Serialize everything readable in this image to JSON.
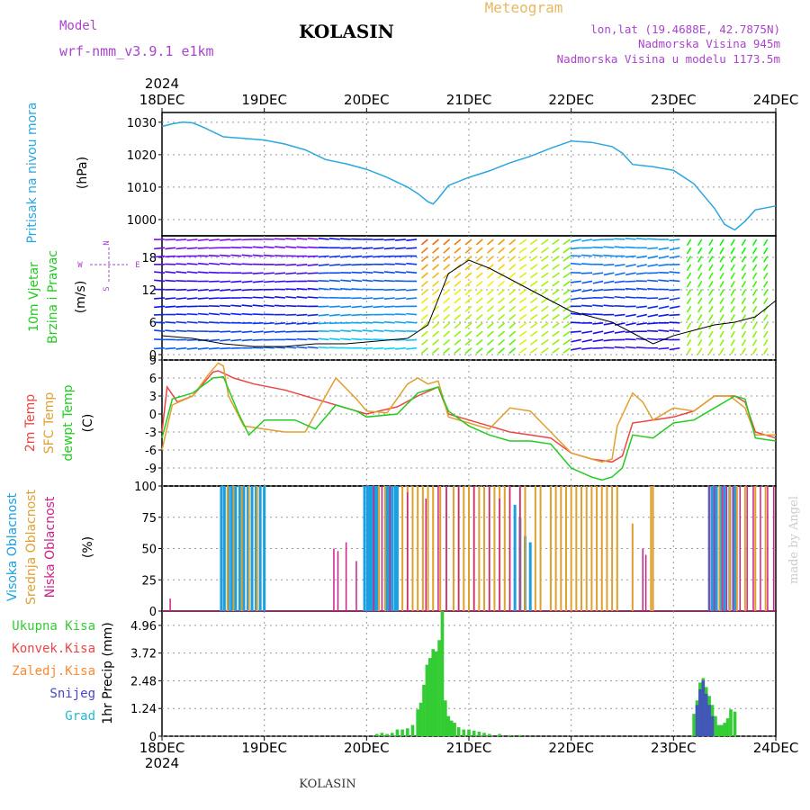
{
  "header": {
    "model_label": "Model",
    "model_name": "wrf-nmm_v3.9.1 e1km",
    "station": "KOLASIN",
    "meteogram": "Meteogram",
    "lonlat": "lon,lat (19.4688E, 42.7875N)",
    "elevation": "Nadmorska Visina 945m",
    "model_elevation": "Nadmorska Visina u modelu 1173.5m",
    "year": "2024",
    "footer_station": "KOLASIN",
    "credit": "made by Angel"
  },
  "colors": {
    "pressure": "#2aa6e0",
    "temp2m": "#ee4444",
    "sfc": "#e0a030",
    "dewpt": "#22cc22",
    "cloud_high": "#1aa0e0",
    "cloud_mid": "#e0a030",
    "cloud_low": "#cc2288",
    "precip_total": "#33cc33",
    "precip_conv": "#ee4444",
    "precip_freeze": "#ff8833",
    "precip_snow": "#4444cc",
    "precip_graupel": "#22bbcc",
    "label_purple": "#aa44cc",
    "label_gold": "#e8b860"
  },
  "chart_data": [
    {
      "type": "line",
      "panel": "pressure",
      "ylabel_main": "Pritisak na nivou mora",
      "ylabel_unit": "(hPa)",
      "x_ticks": [
        "18DEC",
        "19DEC",
        "20DEC",
        "21DEC",
        "22DEC",
        "23DEC",
        "24DEC"
      ],
      "x_range_days": [
        0,
        6
      ],
      "y_ticks": [
        "1030",
        "1020",
        "1010",
        "1000"
      ],
      "ylim": [
        995,
        1033
      ],
      "grid": true,
      "series": [
        {
          "x": [
            0,
            0.1,
            0.2,
            0.3,
            0.4,
            0.6,
            0.8,
            1.0,
            1.2,
            1.4,
            1.6,
            1.8,
            2.0,
            2.2,
            2.4,
            2.5,
            2.6,
            2.65,
            2.7,
            2.8,
            3.0,
            3.2,
            3.4,
            3.6,
            3.8,
            4.0,
            4.2,
            4.4,
            4.5,
            4.6,
            4.8,
            5.0,
            5.2,
            5.4,
            5.5,
            5.6,
            5.7,
            5.8,
            6.0
          ],
          "values": [
            1028.7,
            1029.5,
            1030.0,
            1029.8,
            1028.5,
            1025.5,
            1025.0,
            1024.5,
            1023.3,
            1021.5,
            1018.5,
            1017.2,
            1015.5,
            1013.0,
            1010.0,
            1008.0,
            1005.5,
            1004.8,
            1006.5,
            1010.5,
            1013.0,
            1015.0,
            1017.5,
            1019.5,
            1022.0,
            1024.2,
            1023.8,
            1022.5,
            1020.5,
            1017.0,
            1016.3,
            1015.2,
            1011.0,
            1003.5,
            998.5,
            996.8,
            999.5,
            1003.0,
            1004.2
          ]
        }
      ]
    },
    {
      "type": "line",
      "panel": "wind",
      "ylabel_main": "10m Vjetar",
      "ylabel_sub": "Brzina i Pravac",
      "ylabel_unit": "(m/s)",
      "compass": {
        "n": "N",
        "s": "S",
        "e": "E",
        "w": "W"
      },
      "y_ticks": [
        "18",
        "12",
        "6",
        "0"
      ],
      "ylim": [
        -1,
        22
      ],
      "series": [
        {
          "name": "wind_speed",
          "x": [
            0,
            0.3,
            0.6,
            0.9,
            1.2,
            1.5,
            1.8,
            2.1,
            2.4,
            2.6,
            2.8,
            3.0,
            3.2,
            3.4,
            3.6,
            3.8,
            4.0,
            4.2,
            4.4,
            4.6,
            4.8,
            5.0,
            5.2,
            5.4,
            5.6,
            5.8,
            6.0
          ],
          "values": [
            3.5,
            3.0,
            2.0,
            1.5,
            1.5,
            2.0,
            2.0,
            2.5,
            3.0,
            5.5,
            15.0,
            17.5,
            16.0,
            14.0,
            12.0,
            10.0,
            8.0,
            7.0,
            6.0,
            4.0,
            2.0,
            3.5,
            4.5,
            5.5,
            6.0,
            7.0,
            10.0
          ]
        }
      ]
    },
    {
      "type": "line",
      "panel": "temperature",
      "ylabel_t2m": "2m Temp",
      "ylabel_sfc": "SFC Temp",
      "ylabel_dew": "dewpt Temp",
      "ylabel_unit": "(C)",
      "y_ticks": [
        "9",
        "6",
        "3",
        "0",
        "-3",
        "-6",
        "-9"
      ],
      "ylim": [
        -12,
        9
      ],
      "series": [
        {
          "name": "2m Temp",
          "x": [
            0,
            0.05,
            0.15,
            0.3,
            0.5,
            0.55,
            0.7,
            0.9,
            1.2,
            1.6,
            1.8,
            2.0,
            2.3,
            2.5,
            2.7,
            2.8,
            3.0,
            3.2,
            3.4,
            3.6,
            3.8,
            4.0,
            4.2,
            4.4,
            4.5,
            4.6,
            4.8,
            5.0,
            5.2,
            5.4,
            5.6,
            5.7,
            5.8,
            6.0
          ],
          "values": [
            -3.0,
            4.5,
            2.0,
            3.0,
            7.0,
            7.2,
            6.0,
            5.0,
            4.0,
            2.0,
            1.0,
            0.0,
            1.2,
            3.0,
            4.5,
            0.0,
            -1.0,
            -2.0,
            -3.0,
            -3.5,
            -4.0,
            -6.5,
            -7.5,
            -8.0,
            -7.0,
            -1.5,
            -1.0,
            -0.5,
            0.5,
            3.0,
            3.0,
            2.0,
            -3.0,
            -4.0
          ]
        },
        {
          "name": "SFC Temp",
          "x": [
            0,
            0.1,
            0.3,
            0.45,
            0.55,
            0.6,
            0.65,
            0.8,
            1.0,
            1.2,
            1.4,
            1.7,
            1.9,
            2.0,
            2.2,
            2.4,
            2.5,
            2.6,
            2.7,
            2.8,
            3.0,
            3.2,
            3.4,
            3.6,
            3.8,
            4.0,
            4.2,
            4.3,
            4.4,
            4.45,
            4.6,
            4.7,
            4.8,
            5.0,
            5.2,
            5.4,
            5.55,
            5.7,
            5.8,
            6.0
          ],
          "values": [
            -6.0,
            1.5,
            3.0,
            6.5,
            8.5,
            8.0,
            3.0,
            -2.0,
            -2.5,
            -3.0,
            -3.0,
            6.0,
            2.5,
            0.5,
            0.2,
            5.0,
            6.0,
            5.0,
            5.5,
            -0.5,
            -1.5,
            -2.5,
            1.0,
            0.5,
            -3.0,
            -6.5,
            -7.5,
            -8.0,
            -7.5,
            -2.0,
            3.5,
            2.0,
            -1.0,
            1.0,
            0.5,
            3.0,
            3.0,
            1.0,
            -3.5,
            -3.5
          ]
        },
        {
          "name": "dewpt Temp",
          "x": [
            0,
            0.1,
            0.3,
            0.5,
            0.6,
            0.75,
            0.85,
            1.0,
            1.3,
            1.5,
            1.7,
            1.9,
            2.0,
            2.3,
            2.5,
            2.7,
            2.8,
            3.0,
            3.2,
            3.4,
            3.6,
            3.8,
            4.0,
            4.2,
            4.3,
            4.4,
            4.5,
            4.6,
            4.8,
            5.0,
            5.2,
            5.4,
            5.6,
            5.7,
            5.8,
            6.0
          ],
          "values": [
            -4.0,
            2.5,
            3.5,
            6.0,
            6.2,
            0.0,
            -3.5,
            -1.0,
            -1.0,
            -2.5,
            1.5,
            0.5,
            -0.5,
            0.0,
            3.5,
            4.5,
            0.5,
            -2.0,
            -3.5,
            -4.5,
            -4.5,
            -5.0,
            -9.0,
            -10.5,
            -11.0,
            -10.5,
            -9.0,
            -3.5,
            -4.0,
            -1.5,
            -1.0,
            1.0,
            3.0,
            2.5,
            -4.0,
            -4.5
          ]
        }
      ]
    },
    {
      "type": "bar",
      "panel": "cloud",
      "ylabel_high": "Visoka Oblacnost",
      "ylabel_mid": "Srednja Oblacnost",
      "ylabel_low": "Niska Oblacnost",
      "ylabel_unit": "(%)",
      "y_ticks": [
        "100",
        "75",
        "50",
        "25",
        "0"
      ],
      "ylim": [
        0,
        100
      ],
      "series": [
        {
          "name": "Visoka Oblacnost",
          "x": [
            0.58,
            0.61,
            0.65,
            0.68,
            0.72,
            0.76,
            0.8,
            0.84,
            0.88,
            0.92,
            0.96,
            1.0,
            1.98,
            2.01,
            2.03,
            2.05,
            2.08,
            2.1,
            2.2,
            2.22,
            2.25,
            2.28,
            2.3,
            3.45,
            3.5,
            3.55,
            3.6,
            5.35,
            5.38,
            5.42,
            5.46,
            5.5,
            5.55,
            5.6
          ],
          "values": [
            100,
            100,
            100,
            100,
            100,
            100,
            100,
            100,
            100,
            100,
            100,
            100,
            100,
            100,
            100,
            100,
            100,
            100,
            100,
            100,
            100,
            100,
            100,
            85,
            75,
            60,
            55,
            100,
            100,
            100,
            100,
            100,
            100,
            100
          ]
        },
        {
          "name": "Srednja Oblacnost",
          "x": [
            0.64,
            0.7,
            0.78,
            0.85,
            0.93,
            2.12,
            2.18,
            2.35,
            2.4,
            2.45,
            2.5,
            2.55,
            2.6,
            2.65,
            2.72,
            2.78,
            2.85,
            2.9,
            2.95,
            3.0,
            3.05,
            3.1,
            3.15,
            3.2,
            3.25,
            3.3,
            3.35,
            3.4,
            3.5,
            3.55,
            3.65,
            3.7,
            3.8,
            3.85,
            3.9,
            3.95,
            4.0,
            4.05,
            4.1,
            4.15,
            4.2,
            4.25,
            4.3,
            4.35,
            4.4,
            4.45,
            4.6,
            4.78,
            4.8,
            5.45,
            5.55,
            5.62,
            5.7,
            5.8,
            5.9
          ],
          "values": [
            100,
            100,
            100,
            100,
            100,
            100,
            100,
            100,
            100,
            100,
            100,
            100,
            100,
            100,
            100,
            100,
            100,
            100,
            100,
            100,
            100,
            100,
            100,
            100,
            100,
            100,
            100,
            100,
            100,
            100,
            100,
            100,
            100,
            100,
            100,
            100,
            100,
            100,
            100,
            100,
            100,
            100,
            100,
            100,
            100,
            100,
            70,
            100,
            100,
            100,
            100,
            100,
            100,
            100,
            100
          ]
        },
        {
          "name": "Niska Oblacnost",
          "x": [
            0.08,
            1.68,
            1.72,
            1.8,
            1.9,
            2.07,
            2.15,
            2.23,
            2.4,
            2.58,
            2.7,
            2.78,
            2.9,
            3.05,
            3.2,
            3.3,
            3.4,
            3.5,
            4.7,
            4.73,
            5.35,
            5.4,
            5.48,
            5.52,
            5.58,
            5.65,
            5.72,
            5.78,
            5.85,
            5.92,
            5.98
          ],
          "values": [
            10,
            50,
            48,
            55,
            40,
            100,
            100,
            100,
            95,
            90,
            100,
            100,
            100,
            100,
            100,
            90,
            100,
            100,
            50,
            45,
            100,
            100,
            100,
            100,
            100,
            100,
            100,
            100,
            100,
            100,
            100
          ]
        }
      ]
    },
    {
      "type": "bar",
      "panel": "precip",
      "legend": [
        "Ukupna Kisa",
        "Konvek.Kisa",
        "Zaledj.Kisa",
        "Snijeg",
        "Grad"
      ],
      "ylabel_unit": "1hr Precip (mm)",
      "y_ticks": [
        "4.96",
        "3.72",
        "2.48",
        "1.24",
        "0"
      ],
      "ylim": [
        0,
        5.6
      ],
      "x_ticks": [
        "18DEC",
        "19DEC",
        "20DEC",
        "21DEC",
        "22DEC",
        "23DEC",
        "24DEC"
      ],
      "series": [
        {
          "name": "Ukupna Kisa",
          "x": [
            2.1,
            2.15,
            2.2,
            2.25,
            2.3,
            2.35,
            2.4,
            2.45,
            2.5,
            2.53,
            2.56,
            2.59,
            2.62,
            2.65,
            2.68,
            2.71,
            2.74,
            2.77,
            2.8,
            2.83,
            2.86,
            2.9,
            2.95,
            3.0,
            3.05,
            3.1,
            3.15,
            3.2,
            3.3,
            3.4,
            3.5,
            5.2,
            5.23,
            5.26,
            5.29,
            5.32,
            5.35,
            5.38,
            5.41,
            5.44,
            5.47,
            5.5,
            5.53,
            5.56,
            5.6
          ],
          "values": [
            0.1,
            0.15,
            0.1,
            0.15,
            0.3,
            0.3,
            0.35,
            0.5,
            1.2,
            1.5,
            2.3,
            3.2,
            3.5,
            3.9,
            3.8,
            4.3,
            5.6,
            1.6,
            0.9,
            0.7,
            0.6,
            0.4,
            0.3,
            0.3,
            0.25,
            0.2,
            0.15,
            0.1,
            0.1,
            0.05,
            0.05,
            1.0,
            1.6,
            2.4,
            2.6,
            2.2,
            1.8,
            1.4,
            0.9,
            0.5,
            0.5,
            0.6,
            0.8,
            1.2,
            1.1
          ]
        },
        {
          "name": "Snijeg",
          "x": [
            5.23,
            5.26,
            5.29,
            5.32,
            5.35,
            5.38
          ],
          "values": [
            1.4,
            2.1,
            2.5,
            1.9,
            1.4,
            0.9
          ]
        }
      ]
    }
  ]
}
